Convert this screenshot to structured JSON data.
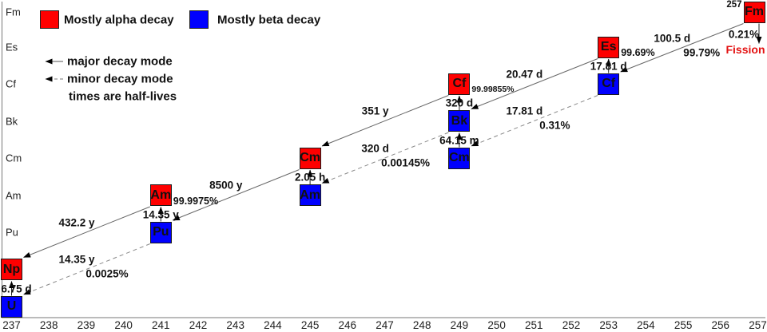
{
  "legend": {
    "alpha_label": "Mostly alpha decay",
    "beta_label": "Mostly beta decay",
    "major_label": "major decay mode",
    "minor_label": "minor decay mode",
    "note": "times are half-lives"
  },
  "colors": {
    "alpha": "#fe0000",
    "beta": "#0000fe",
    "fission_text": "#e31212"
  },
  "axes": {
    "x_ticks": [
      "237",
      "238",
      "239",
      "240",
      "241",
      "242",
      "243",
      "244",
      "245",
      "246",
      "247",
      "248",
      "249",
      "250",
      "251",
      "252",
      "253",
      "254",
      "255",
      "256",
      "257"
    ],
    "y_labels": [
      "Fm",
      "Es",
      "Cf",
      "Bk",
      "Cm",
      "Am",
      "Pu"
    ]
  },
  "nodes": [
    {
      "id": "Fm-257",
      "element": "Fm",
      "mass": 257,
      "row": "Fm",
      "decay": "alpha",
      "mass_label": "257"
    },
    {
      "id": "Es-253",
      "element": "Es",
      "mass": 253,
      "row": "Es",
      "decay": "alpha"
    },
    {
      "id": "Cf-253",
      "element": "Cf",
      "mass": 253,
      "row": "Cf",
      "decay": "beta"
    },
    {
      "id": "Cf-249",
      "element": "Cf",
      "mass": 249,
      "row": "Cf",
      "decay": "alpha"
    },
    {
      "id": "Bk-249",
      "element": "Bk",
      "mass": 249,
      "row": "Bk",
      "decay": "beta"
    },
    {
      "id": "Cm-249",
      "element": "Cm",
      "mass": 249,
      "row": "Cm",
      "decay": "beta"
    },
    {
      "id": "Cm-245",
      "element": "Cm",
      "mass": 245,
      "row": "Cm",
      "decay": "alpha"
    },
    {
      "id": "Am-245",
      "element": "Am",
      "mass": 245,
      "row": "Am",
      "decay": "beta"
    },
    {
      "id": "Am-241",
      "element": "Am",
      "mass": 241,
      "row": "Am",
      "decay": "alpha"
    },
    {
      "id": "Pu-241",
      "element": "Pu",
      "mass": 241,
      "row": "Pu",
      "decay": "beta"
    },
    {
      "id": "Np-237",
      "element": "Np",
      "mass": 237,
      "row": "Np",
      "decay": "alpha"
    },
    {
      "id": "U-237",
      "element": "U",
      "mass": 237,
      "row": "U",
      "decay": "beta"
    }
  ],
  "decays": [
    {
      "from": "Fm-257",
      "to": "Cf-253",
      "mode": "alpha-major",
      "halflife": "100.5 d",
      "percent": "99.79%"
    },
    {
      "from": "Fm-257",
      "to": null,
      "mode": "fission",
      "halflife": null,
      "percent": "0.21%",
      "label": "Fission"
    },
    {
      "from": "Cf-253",
      "to": "Es-253",
      "mode": "beta",
      "halflife": "17.81 d",
      "percent": "99.69%"
    },
    {
      "from": "Cf-253",
      "to": "Cm-249",
      "mode": "alpha-minor",
      "halflife": "17.81 d",
      "percent": "0.31%"
    },
    {
      "from": "Es-253",
      "to": "Bk-249",
      "mode": "alpha-major",
      "halflife": "20.47 d",
      "percent": null
    },
    {
      "from": "Cm-249",
      "to": "Bk-249",
      "mode": "beta",
      "halflife": "64.15 m",
      "percent": null
    },
    {
      "from": "Bk-249",
      "to": "Cf-249",
      "mode": "beta",
      "halflife": "320 d",
      "percent": "99.99855%"
    },
    {
      "from": "Bk-249",
      "to": "Am-245",
      "mode": "alpha-minor",
      "halflife": "320 d",
      "percent": "0.00145%"
    },
    {
      "from": "Cf-249",
      "to": "Cm-245",
      "mode": "alpha-major",
      "halflife": "351 y",
      "percent": null
    },
    {
      "from": "Am-245",
      "to": "Cm-245",
      "mode": "beta",
      "halflife": "2.05 h",
      "percent": null
    },
    {
      "from": "Cm-245",
      "to": "Pu-241",
      "mode": "alpha-major",
      "halflife": "8500 y",
      "percent": null
    },
    {
      "from": "Pu-241",
      "to": "Am-241",
      "mode": "beta",
      "halflife": "14.35 y",
      "percent": "99.9975%"
    },
    {
      "from": "Pu-241",
      "to": "U-237",
      "mode": "alpha-minor",
      "halflife": "14.35 y",
      "percent": "0.0025%"
    },
    {
      "from": "Am-241",
      "to": "Np-237",
      "mode": "alpha-major",
      "halflife": "432.2 y",
      "percent": null
    },
    {
      "from": "U-237",
      "to": "Np-237",
      "mode": "beta",
      "halflife": "6.75 d",
      "percent": null
    }
  ]
}
